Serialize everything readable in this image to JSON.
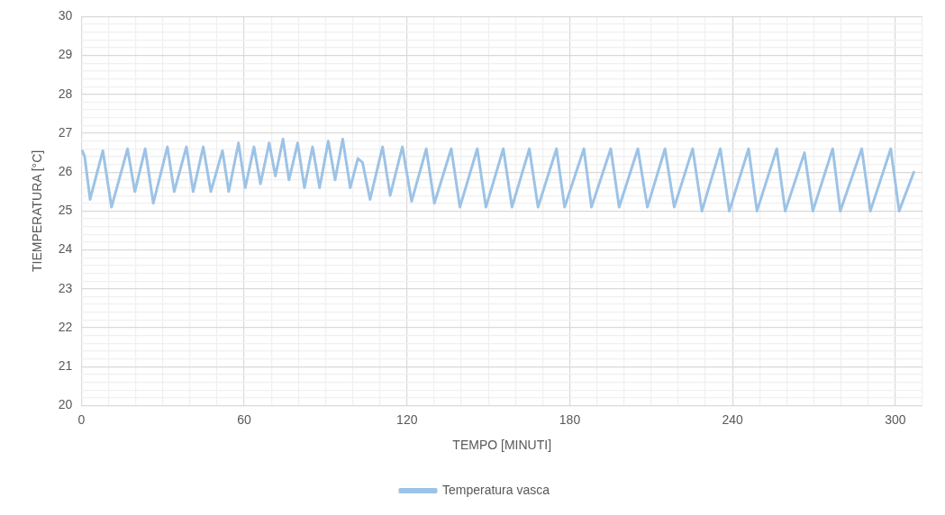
{
  "chart_data": {
    "type": "line",
    "xlabel": "TEMPO [MINUTI]",
    "ylabel": "TIEMPERATURA [°C]",
    "legend": "bottom",
    "grid": true,
    "marker": "none",
    "line_style": "solid",
    "xlim": [
      0,
      310
    ],
    "xticks": [
      0,
      {
        "value": 10,
        "label": null
      },
      {
        "value": 20,
        "label": null
      },
      {
        "value": 30,
        "label": null
      },
      {
        "value": 40,
        "label": null
      },
      {
        "value": 50,
        "label": null
      },
      60,
      {
        "value": 70,
        "label": null
      },
      {
        "value": 80,
        "label": null
      },
      {
        "value": 90,
        "label": null
      },
      {
        "value": 100,
        "label": null
      },
      {
        "value": 110,
        "label": null
      },
      120,
      {
        "value": 130,
        "label": null
      },
      {
        "value": 140,
        "label": null
      },
      {
        "value": 150,
        "label": null
      },
      {
        "value": 160,
        "label": null
      },
      {
        "value": 170,
        "label": null
      },
      180,
      {
        "value": 190,
        "label": null
      },
      {
        "value": 200,
        "label": null
      },
      {
        "value": 210,
        "label": null
      },
      {
        "value": 220,
        "label": null
      },
      {
        "value": 230,
        "label": null
      },
      240,
      {
        "value": 250,
        "label": null
      },
      {
        "value": 260,
        "label": null
      },
      {
        "value": 270,
        "label": null
      },
      {
        "value": 280,
        "label": null
      },
      {
        "value": 290,
        "label": null
      },
      300,
      {
        "value": 310,
        "label": null
      }
    ],
    "ylim": [
      20,
      30
    ],
    "yticks": [
      20,
      {
        "value": 20.2,
        "label": null
      },
      {
        "value": 20.4,
        "label": null
      },
      {
        "value": 20.6,
        "label": null
      },
      {
        "value": 20.8,
        "label": null
      },
      21,
      {
        "value": 21.2,
        "label": null
      },
      {
        "value": 21.4,
        "label": null
      },
      {
        "value": 21.6,
        "label": null
      },
      {
        "value": 21.8,
        "label": null
      },
      22,
      {
        "value": 22.2,
        "label": null
      },
      {
        "value": 22.4,
        "label": null
      },
      {
        "value": 22.6,
        "label": null
      },
      {
        "value": 22.8,
        "label": null
      },
      23,
      {
        "value": 23.2,
        "label": null
      },
      {
        "value": 23.4,
        "label": null
      },
      {
        "value": 23.6,
        "label": null
      },
      {
        "value": 23.8,
        "label": null
      },
      24,
      {
        "value": 24.2,
        "label": null
      },
      {
        "value": 24.4,
        "label": null
      },
      {
        "value": 24.6,
        "label": null
      },
      {
        "value": 24.8,
        "label": null
      },
      25,
      {
        "value": 25.2,
        "label": null
      },
      {
        "value": 25.4,
        "label": null
      },
      {
        "value": 25.6,
        "label": null
      },
      {
        "value": 25.8,
        "label": null
      },
      26,
      {
        "value": 26.2,
        "label": null
      },
      {
        "value": 26.4,
        "label": null
      },
      {
        "value": 26.6,
        "label": null
      },
      {
        "value": 26.8,
        "label": null
      },
      27,
      {
        "value": 27.2,
        "label": null
      },
      {
        "value": 27.4,
        "label": null
      },
      {
        "value": 27.6,
        "label": null
      },
      {
        "value": 27.8,
        "label": null
      },
      28,
      {
        "value": 28.2,
        "label": null
      },
      {
        "value": 28.4,
        "label": null
      },
      {
        "value": 28.6,
        "label": null
      },
      {
        "value": 28.8,
        "label": null
      },
      29,
      {
        "value": 29.2,
        "label": null
      },
      {
        "value": 29.4,
        "label": null
      },
      {
        "value": 29.6,
        "label": null
      },
      {
        "value": 29.8,
        "label": null
      },
      30
    ],
    "series": [
      {
        "name": "Temperatura vasca",
        "color": "#9dc3e6",
        "x": [
          0.3,
          1.2,
          3.2,
          7.9,
          11.1,
          17,
          19.7,
          23.5,
          26.5,
          31.7,
          34.2,
          38.7,
          41.2,
          44.9,
          47.7,
          52,
          54.3,
          57.9,
          60.4,
          63.6,
          66,
          69.2,
          71.5,
          74.3,
          76.5,
          79.7,
          82.2,
          85.2,
          87.8,
          91,
          93.5,
          96.3,
          99.1,
          101.9,
          103.6,
          106.4,
          111,
          113.8,
          118.3,
          121.7,
          127.1,
          130.1,
          136.3,
          139.5,
          145.9,
          149.1,
          155.5,
          158.7,
          165.1,
          168.3,
          175.1,
          178.1,
          185.2,
          188,
          195.1,
          198.2,
          205.1,
          208.6,
          215.1,
          218.5,
          225.3,
          228.7,
          235.5,
          238.8,
          245.9,
          249,
          256.3,
          259.4,
          266.5,
          269.6,
          276.9,
          279.7,
          287.6,
          290.8,
          298.3,
          301.4,
          306.8
        ],
        "values": [
          26.55,
          26.4,
          25.3,
          26.55,
          25.1,
          26.6,
          25.5,
          26.6,
          25.2,
          26.65,
          25.5,
          26.65,
          25.5,
          26.65,
          25.5,
          26.55,
          25.5,
          26.75,
          25.6,
          26.65,
          25.7,
          26.75,
          25.9,
          26.85,
          25.8,
          26.75,
          25.6,
          26.65,
          25.6,
          26.8,
          25.8,
          26.85,
          25.6,
          26.35,
          26.25,
          25.3,
          26.65,
          25.4,
          26.65,
          25.25,
          26.6,
          25.2,
          26.6,
          25.1,
          26.6,
          25.1,
          26.6,
          25.1,
          26.6,
          25.1,
          26.6,
          25.1,
          26.6,
          25.1,
          26.6,
          25.1,
          26.6,
          25.1,
          26.6,
          25.1,
          26.6,
          25,
          26.6,
          25,
          26.6,
          25,
          26.6,
          25,
          26.5,
          25,
          26.6,
          25,
          26.6,
          25,
          26.6,
          25,
          26
        ]
      }
    ]
  }
}
